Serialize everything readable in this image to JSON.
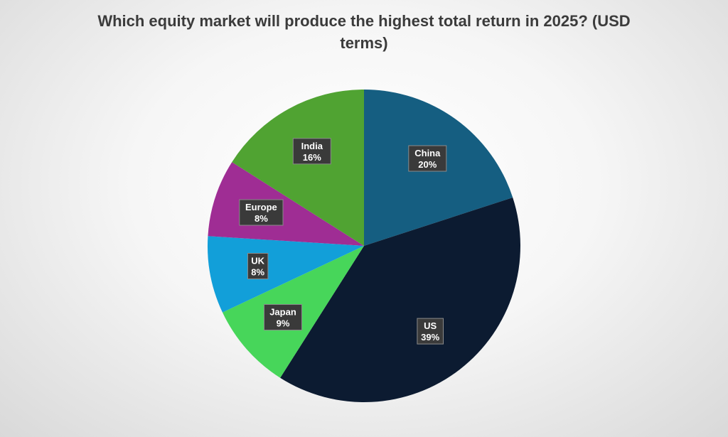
{
  "chart_data": {
    "type": "pie",
    "title_line1": "Which equity market will produce the highest total return in 2025? (USD",
    "title_line2": "terms)",
    "slices": [
      {
        "category": "China",
        "value": 20,
        "label": "20%",
        "color": "#155e81"
      },
      {
        "category": "US",
        "value": 39,
        "label": "39%",
        "color": "#0c1b31"
      },
      {
        "category": "Japan",
        "value": 9,
        "label": "9%",
        "color": "#47d65a"
      },
      {
        "category": "UK",
        "value": 8,
        "label": "8%",
        "color": "#129fd9"
      },
      {
        "category": "Europe",
        "value": 8,
        "label": "8%",
        "color": "#9f2d94"
      },
      {
        "category": "India",
        "value": 16,
        "label": "16%",
        "color": "#50a332"
      }
    ],
    "start": "12 o'clock",
    "direction": "clockwise",
    "legend": "none",
    "data_labels": "category and percentage"
  }
}
